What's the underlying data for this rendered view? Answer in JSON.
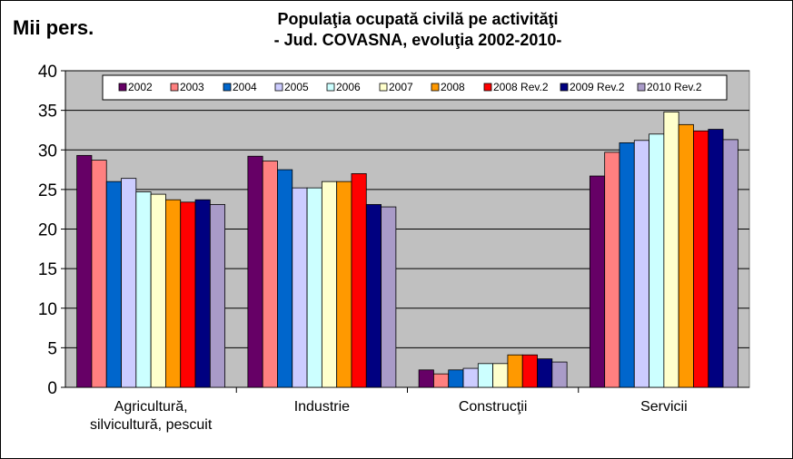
{
  "chart_data": {
    "type": "bar",
    "title_line1": "Populaţia  ocupată  civilă  pe  activităţi",
    "title_line2": "- Jud.  COVASNA,  evoluţia  2002-2010-",
    "ylabel": "Mii pers.",
    "xlabel": "",
    "ylim": [
      0,
      40
    ],
    "yticks": [
      0,
      5,
      10,
      15,
      20,
      25,
      30,
      35,
      40
    ],
    "grid": true,
    "legend_position": "top",
    "plot_background": "#c0c0c0",
    "categories": [
      [
        "Agricultură,",
        "silvicultură, pescuit"
      ],
      [
        "Industrie"
      ],
      [
        "Construcţii"
      ],
      [
        "Servicii"
      ]
    ],
    "series": [
      {
        "name": "2002",
        "color": "#660066",
        "values": [
          29.3,
          29.2,
          2.2,
          26.7
        ]
      },
      {
        "name": "2003",
        "color": "#ff8080",
        "values": [
          28.7,
          28.6,
          1.7,
          29.7
        ]
      },
      {
        "name": "2004",
        "color": "#0066cc",
        "values": [
          26.0,
          27.5,
          2.2,
          30.9
        ]
      },
      {
        "name": "2005",
        "color": "#ccccff",
        "values": [
          26.4,
          25.2,
          2.4,
          31.2
        ]
      },
      {
        "name": "2006",
        "color": "#ccffff",
        "values": [
          24.7,
          25.2,
          3.0,
          32.0
        ]
      },
      {
        "name": "2007",
        "color": "#ffffcc",
        "values": [
          24.4,
          26.0,
          3.0,
          34.8
        ]
      },
      {
        "name": "2008",
        "color": "#ff9900",
        "values": [
          23.7,
          26.0,
          4.1,
          33.2
        ]
      },
      {
        "name": "2008 Rev.2",
        "color": "#ff0000",
        "values": [
          23.4,
          27.0,
          4.1,
          32.4
        ]
      },
      {
        "name": "2009 Rev.2",
        "color": "#000080",
        "values": [
          23.7,
          23.1,
          3.6,
          32.6
        ]
      },
      {
        "name": "2010 Rev.2",
        "color": "#a99bc8",
        "values": [
          23.1,
          22.8,
          3.2,
          31.3
        ]
      }
    ]
  }
}
